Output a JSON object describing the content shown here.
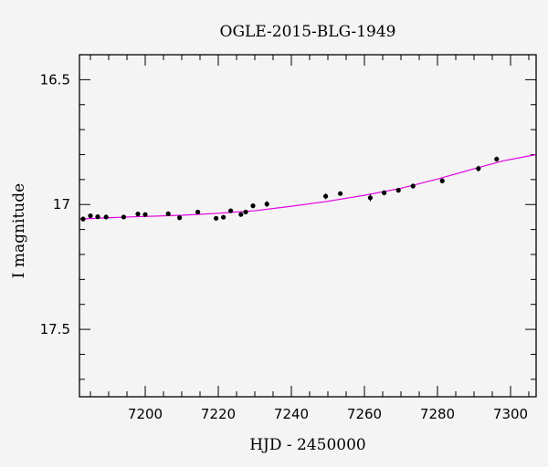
{
  "chart_data": {
    "type": "scatter",
    "title": "OGLE-2015-BLG-1949",
    "xlabel": "HJD - 2450000",
    "ylabel": "I magnitude",
    "xlim": [
      7182,
      7307
    ],
    "ylim": [
      17.77,
      16.4
    ],
    "y_inverted": true,
    "grid": false,
    "x_ticks": [
      7200,
      7220,
      7240,
      7260,
      7280,
      7300
    ],
    "x_tick_labels": [
      "7200",
      "7220",
      "7240",
      "7260",
      "7280",
      "7300"
    ],
    "y_ticks": [
      16.5,
      17,
      17.5
    ],
    "y_tick_labels": [
      "16.5",
      "17",
      "17.5"
    ],
    "x_minor_step": 5,
    "y_minor_step": 0.1,
    "colors": {
      "points": "#000000",
      "model": "#e000e0",
      "frame": "#000000"
    },
    "series": [
      {
        "kind": "points",
        "points": [
          {
            "x": 7183.0,
            "y": 17.058,
            "err": 0.01
          },
          {
            "x": 7185.0,
            "y": 17.045,
            "err": 0.008
          },
          {
            "x": 7187.0,
            "y": 17.049,
            "err": 0.008
          },
          {
            "x": 7189.3,
            "y": 17.05,
            "err": 0.01
          },
          {
            "x": 7194.1,
            "y": 17.05,
            "err": 0.008
          },
          {
            "x": 7198.0,
            "y": 17.038,
            "err": 0.008
          },
          {
            "x": 7200.0,
            "y": 17.04,
            "err": 0.007
          },
          {
            "x": 7206.3,
            "y": 17.037,
            "err": 0.008
          },
          {
            "x": 7209.4,
            "y": 17.053,
            "err": 0.008
          },
          {
            "x": 7214.4,
            "y": 17.03,
            "err": 0.008
          },
          {
            "x": 7219.4,
            "y": 17.055,
            "err": 0.007
          },
          {
            "x": 7221.4,
            "y": 17.051,
            "err": 0.008
          },
          {
            "x": 7223.4,
            "y": 17.025,
            "err": 0.008
          },
          {
            "x": 7226.2,
            "y": 17.04,
            "err": 0.008
          },
          {
            "x": 7227.5,
            "y": 17.03,
            "err": 0.007
          },
          {
            "x": 7229.5,
            "y": 17.005,
            "err": 0.009
          },
          {
            "x": 7233.3,
            "y": 16.998,
            "err": 0.012
          },
          {
            "x": 7249.4,
            "y": 16.967,
            "err": 0.012
          },
          {
            "x": 7253.4,
            "y": 16.956,
            "err": 0.008
          },
          {
            "x": 7261.6,
            "y": 16.973,
            "err": 0.014
          },
          {
            "x": 7265.4,
            "y": 16.953,
            "err": 0.01
          },
          {
            "x": 7269.3,
            "y": 16.943,
            "err": 0.007
          },
          {
            "x": 7273.3,
            "y": 16.926,
            "err": 0.01
          },
          {
            "x": 7281.3,
            "y": 16.905,
            "err": 0.01
          },
          {
            "x": 7291.2,
            "y": 16.856,
            "err": 0.012
          },
          {
            "x": 7296.2,
            "y": 16.818,
            "err": 0.01
          }
        ]
      },
      {
        "kind": "model",
        "points": [
          {
            "x": 7182,
            "y": 17.058
          },
          {
            "x": 7195,
            "y": 17.05
          },
          {
            "x": 7210,
            "y": 17.043
          },
          {
            "x": 7220,
            "y": 17.035
          },
          {
            "x": 7230,
            "y": 17.025
          },
          {
            "x": 7240,
            "y": 17.007
          },
          {
            "x": 7250,
            "y": 16.987
          },
          {
            "x": 7260,
            "y": 16.963
          },
          {
            "x": 7270,
            "y": 16.935
          },
          {
            "x": 7280,
            "y": 16.898
          },
          {
            "x": 7290,
            "y": 16.857
          },
          {
            "x": 7298,
            "y": 16.825
          },
          {
            "x": 7307,
            "y": 16.8
          }
        ]
      }
    ]
  }
}
